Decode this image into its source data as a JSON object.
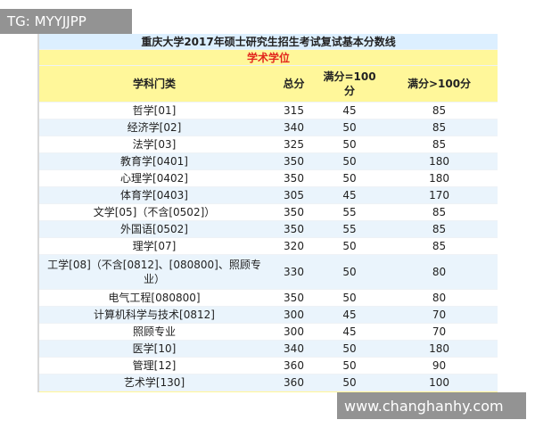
{
  "watermark_top": "TG: MYYJJPP",
  "watermark_bottom": "www.changhanhy.com",
  "table": {
    "title": "重庆大学2017年硕士研究生招生考试复试基本分数线",
    "section": "学术学位",
    "header": [
      "学科门类",
      "总分",
      "满分=100分",
      "满分>100分"
    ],
    "rows": [
      [
        "哲学[01]",
        315,
        45,
        85
      ],
      [
        "经济学[02]",
        340,
        50,
        85
      ],
      [
        "法学[03]",
        325,
        50,
        85
      ],
      [
        "教育学[0401]",
        350,
        50,
        180
      ],
      [
        "心理学[0402]",
        350,
        50,
        180
      ],
      [
        "体育学[0403]",
        305,
        45,
        170
      ],
      [
        "文学[05]（不含[0502]）",
        350,
        55,
        85
      ],
      [
        "外国语[0502]",
        350,
        55,
        85
      ],
      [
        "理学[07]",
        320,
        50,
        85
      ],
      [
        "工学[08]（不含[0812]、[080800]、照顾专业）",
        330,
        50,
        80
      ],
      [
        "电气工程[080800]",
        350,
        50,
        80
      ],
      [
        "计算机科学与技术[0812]",
        300,
        45,
        70
      ],
      [
        "照顾专业",
        300,
        45,
        70
      ],
      [
        "医学[10]",
        340,
        50,
        180
      ],
      [
        "管理[12]",
        360,
        50,
        90
      ],
      [
        "艺术学[130]",
        360,
        50,
        100
      ]
    ]
  }
}
